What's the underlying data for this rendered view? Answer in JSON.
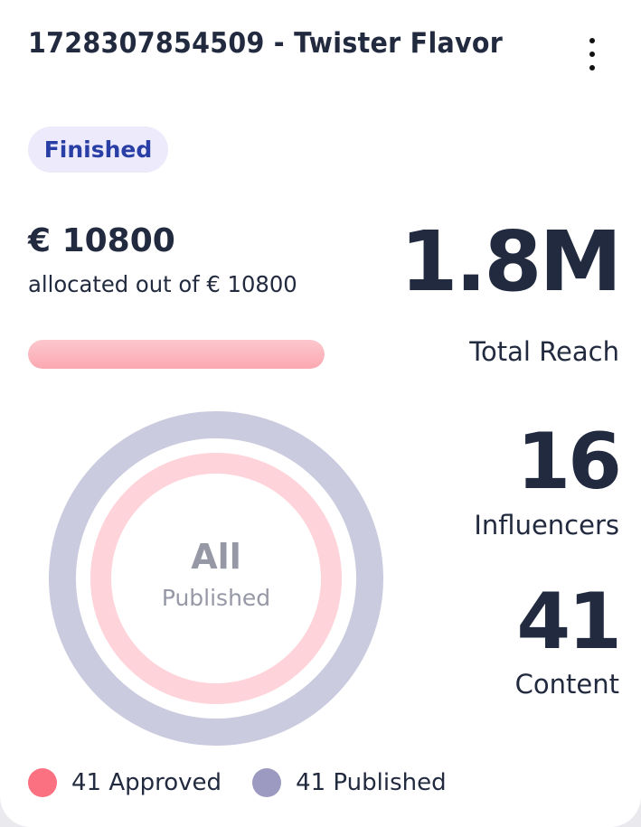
{
  "card": {
    "title": "1728307854509 - Twister Flavor",
    "menu_icon": "kebab-menu-icon",
    "status_badge": "Finished",
    "colors": {
      "badge_bg": "#ECEAFB",
      "badge_text": "#2A3FA6",
      "text_primary": "#222A3F",
      "progress_fill": "#FBA8B1"
    }
  },
  "budget": {
    "allocated": "€ 10800",
    "subtitle": "allocated out of € 10800",
    "progress_percent": 100
  },
  "stats": {
    "total_reach": {
      "value": "1.8M",
      "label": "Total Reach"
    },
    "influencers": {
      "value": "16",
      "label": "Influencers"
    },
    "content": {
      "value": "41",
      "label": "Content"
    }
  },
  "donut": {
    "center_main": "All",
    "center_sub": "Published",
    "rings": [
      {
        "name": "Published",
        "color": "#CBCBDF",
        "value": 41,
        "total": 41
      },
      {
        "name": "Approved",
        "color": "#FED3D9",
        "value": 41,
        "total": 41
      }
    ]
  },
  "legend": [
    {
      "label": "41 Approved",
      "color": "#FC7182"
    },
    {
      "label": "41 Published",
      "color": "#9C9AC0"
    }
  ]
}
